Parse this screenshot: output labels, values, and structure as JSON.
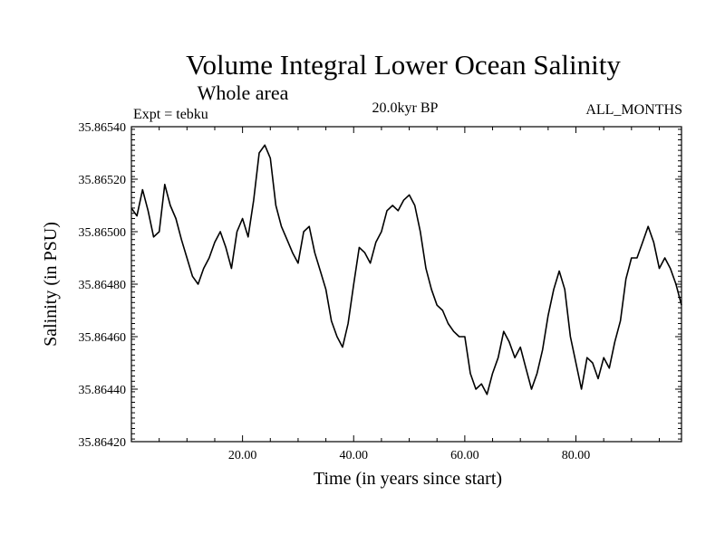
{
  "chart_data": {
    "type": "line",
    "title": "Volume Integral Lower Ocean Salinity",
    "subtitle": "Whole area",
    "expt_label": "Expt = tebku",
    "period_label": "20.0kyr BP",
    "months_label": "ALL_MONTHS",
    "xlabel": "Time (in years since start)",
    "ylabel": "Salinity (in PSU)",
    "xlim": [
      0,
      99
    ],
    "ylim": [
      35.8642,
      35.8654
    ],
    "x_ticks": [
      20,
      40,
      60,
      80
    ],
    "x_tick_labels": [
      "20.00",
      "40.00",
      "60.00",
      "80.00"
    ],
    "y_ticks": [
      35.8642,
      35.8644,
      35.8646,
      35.8648,
      35.865,
      35.8652,
      35.8654
    ],
    "y_tick_labels": [
      "35.86420",
      "35.86440",
      "35.86460",
      "35.86480",
      "35.86500",
      "35.86520",
      "35.86540"
    ],
    "series": [
      {
        "name": "salinity",
        "x": [
          0,
          1,
          2,
          3,
          4,
          5,
          6,
          7,
          8,
          9,
          10,
          11,
          12,
          13,
          14,
          15,
          16,
          17,
          18,
          19,
          20,
          21,
          22,
          23,
          24,
          25,
          26,
          27,
          28,
          29,
          30,
          31,
          32,
          33,
          34,
          35,
          36,
          37,
          38,
          39,
          40,
          41,
          42,
          43,
          44,
          45,
          46,
          47,
          48,
          49,
          50,
          51,
          52,
          53,
          54,
          55,
          56,
          57,
          58,
          59,
          60,
          61,
          62,
          63,
          64,
          65,
          66,
          67,
          68,
          69,
          70,
          71,
          72,
          73,
          74,
          75,
          76,
          77,
          78,
          79,
          80,
          81,
          82,
          83,
          84,
          85,
          86,
          87,
          88,
          89,
          90,
          91,
          92,
          93,
          94,
          95,
          96,
          97,
          98,
          99
        ],
        "values": [
          35.86509,
          35.86506,
          35.86516,
          35.86508,
          35.86498,
          35.865,
          35.86518,
          35.8651,
          35.86505,
          35.86497,
          35.8649,
          35.86483,
          35.8648,
          35.86486,
          35.8649,
          35.86496,
          35.865,
          35.86494,
          35.86486,
          35.865,
          35.86505,
          35.86498,
          35.86512,
          35.8653,
          35.86533,
          35.86528,
          35.8651,
          35.86502,
          35.86497,
          35.86492,
          35.86488,
          35.865,
          35.86502,
          35.86492,
          35.86485,
          35.86478,
          35.86466,
          35.8646,
          35.86456,
          35.86465,
          35.8648,
          35.86494,
          35.86492,
          35.86488,
          35.86496,
          35.865,
          35.86508,
          35.8651,
          35.86508,
          35.86512,
          35.86514,
          35.8651,
          35.865,
          35.86486,
          35.86478,
          35.86472,
          35.8647,
          35.86465,
          35.86462,
          35.8646,
          35.8646,
          35.86446,
          35.8644,
          35.86442,
          35.86438,
          35.86446,
          35.86452,
          35.86462,
          35.86458,
          35.86452,
          35.86456,
          35.86448,
          35.8644,
          35.86446,
          35.86455,
          35.86468,
          35.86478,
          35.86485,
          35.86478,
          35.8646,
          35.8645,
          35.8644,
          35.86452,
          35.8645,
          35.86444,
          35.86452,
          35.86448,
          35.86458,
          35.86466,
          35.86482,
          35.8649,
          35.8649,
          35.86496,
          35.86502,
          35.86496,
          35.86486,
          35.8649,
          35.86486,
          35.8648,
          35.86472
        ]
      }
    ]
  }
}
